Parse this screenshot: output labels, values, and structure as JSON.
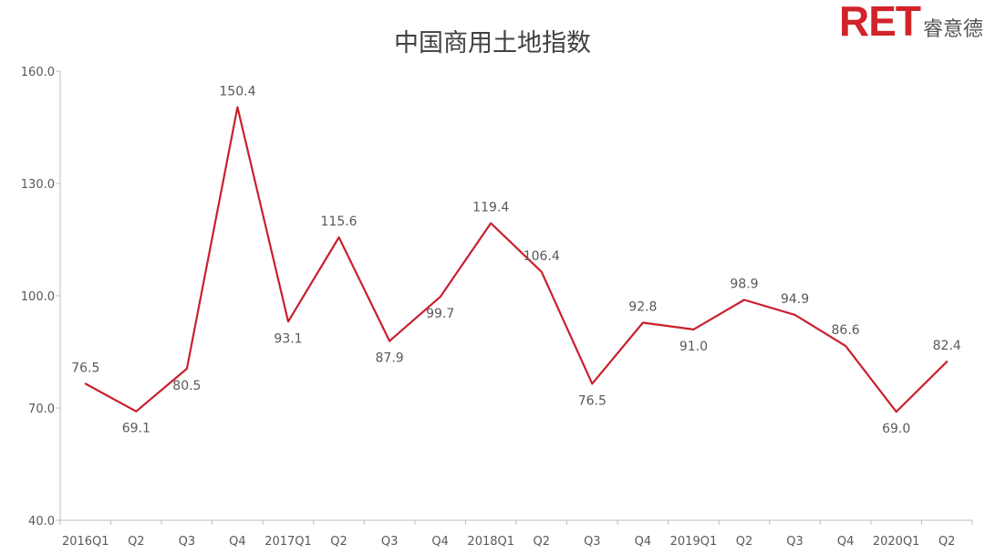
{
  "logo": {
    "mark": "RET",
    "text": "睿意德"
  },
  "colors": {
    "line": "#c9202e",
    "axis": "#bfbfbf",
    "text": "#595959",
    "brand": "#d2232a"
  },
  "chart_data": {
    "type": "line",
    "title": "中国商用土地指数",
    "xlabel": "",
    "ylabel": "",
    "ylim": [
      40,
      160
    ],
    "yticks": [
      "40.0",
      "70.0",
      "100.0",
      "130.0",
      "160.0"
    ],
    "grid": false,
    "legend": "none",
    "categories": [
      "2016Q1",
      "Q2",
      "Q3",
      "Q4",
      "2017Q1",
      "Q2",
      "Q3",
      "Q4",
      "2018Q1",
      "Q2",
      "Q3",
      "Q4",
      "2019Q1",
      "Q2",
      "Q3",
      "Q4",
      "2020Q1",
      "Q2"
    ],
    "series": [
      {
        "values": [
          76.5,
          69.1,
          80.5,
          150.4,
          93.1,
          115.6,
          87.9,
          99.7,
          119.4,
          106.4,
          76.5,
          92.8,
          91.0,
          98.9,
          94.9,
          86.6,
          69.0,
          82.4
        ],
        "labels": [
          "76.5",
          "69.1",
          "80.5",
          "150.4",
          "93.1",
          "115.6",
          "87.9",
          "99.7",
          "119.4",
          "106.4",
          "76.5",
          "92.8",
          "91.0",
          "98.9",
          "94.9",
          "86.6",
          "69.0",
          "82.4"
        ]
      }
    ]
  }
}
